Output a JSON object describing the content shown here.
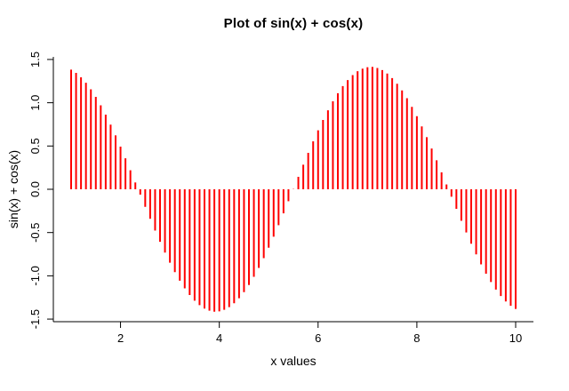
{
  "chart_data": {
    "type": "bar",
    "bar_style": "thin-vertical-lines-from-zero (R plot type='h')",
    "title": "Plot of sin(x) + cos(x)",
    "xlabel": "x values",
    "ylabel": "sin(x) + cos(x)",
    "xlim": [
      0.64,
      10.36
    ],
    "ylim": [
      -1.53,
      1.53
    ],
    "x_ticks": [
      2,
      4,
      6,
      8,
      10
    ],
    "y_ticks": [
      -1.5,
      -1.0,
      -0.5,
      0.0,
      0.5,
      1.0,
      1.5
    ],
    "grid": false,
    "legend": false,
    "background_color": "#ffffff",
    "axis_color": "#000000",
    "text_color": "#000000",
    "line_color": "#ff0000",
    "x": [
      1.0,
      1.1,
      1.2,
      1.3,
      1.4,
      1.5,
      1.6,
      1.7,
      1.8,
      1.9,
      2.0,
      2.1,
      2.2,
      2.3,
      2.4,
      2.5,
      2.6,
      2.7,
      2.8,
      2.9,
      3.0,
      3.1,
      3.2,
      3.3,
      3.4,
      3.5,
      3.6,
      3.7,
      3.8,
      3.9,
      4.0,
      4.1,
      4.2,
      4.3,
      4.4,
      4.5,
      4.6,
      4.7,
      4.8,
      4.9,
      5.0,
      5.1,
      5.2,
      5.3,
      5.4,
      5.5,
      5.6,
      5.7,
      5.8,
      5.9,
      6.0,
      6.1,
      6.2,
      6.3,
      6.4,
      6.5,
      6.6,
      6.7,
      6.8,
      6.9,
      7.0,
      7.1,
      7.2,
      7.3,
      7.4,
      7.5,
      7.6,
      7.7,
      7.8,
      7.9,
      8.0,
      8.1,
      8.2,
      8.3,
      8.4,
      8.5,
      8.6,
      8.7,
      8.8,
      8.9,
      9.0,
      9.1,
      9.2,
      9.3,
      9.4,
      9.5,
      9.6,
      9.7,
      9.8,
      9.9,
      10.0
    ],
    "y": [
      1.382,
      1.345,
      1.294,
      1.231,
      1.155,
      1.068,
      0.97,
      0.863,
      0.747,
      0.623,
      0.493,
      0.358,
      0.22,
      0.079,
      -0.062,
      -0.203,
      -0.341,
      -0.477,
      -0.607,
      -0.732,
      -0.849,
      -0.958,
      -1.057,
      -1.145,
      -1.222,
      -1.287,
      -1.339,
      -1.378,
      -1.403,
      -1.414,
      -1.41,
      -1.393,
      -1.362,
      -1.317,
      -1.259,
      -1.188,
      -1.106,
      -1.012,
      -0.909,
      -0.796,
      -0.675,
      -0.548,
      -0.415,
      -0.278,
      -0.138,
      0.003,
      0.144,
      0.284,
      0.421,
      0.554,
      0.681,
      0.801,
      0.913,
      1.017,
      1.11,
      1.192,
      1.262,
      1.319,
      1.364,
      1.394,
      1.411,
      1.414,
      1.402,
      1.377,
      1.337,
      1.285,
      1.219,
      1.142,
      1.053,
      0.953,
      0.844,
      0.726,
      0.602,
      0.471,
      0.335,
      0.196,
      0.056,
      -0.086,
      -0.226,
      -0.364,
      -0.499,
      -0.629,
      -0.752,
      -0.868,
      -0.975,
      -1.072,
      -1.159,
      -1.234,
      -1.297,
      -1.347,
      -1.383
    ]
  }
}
